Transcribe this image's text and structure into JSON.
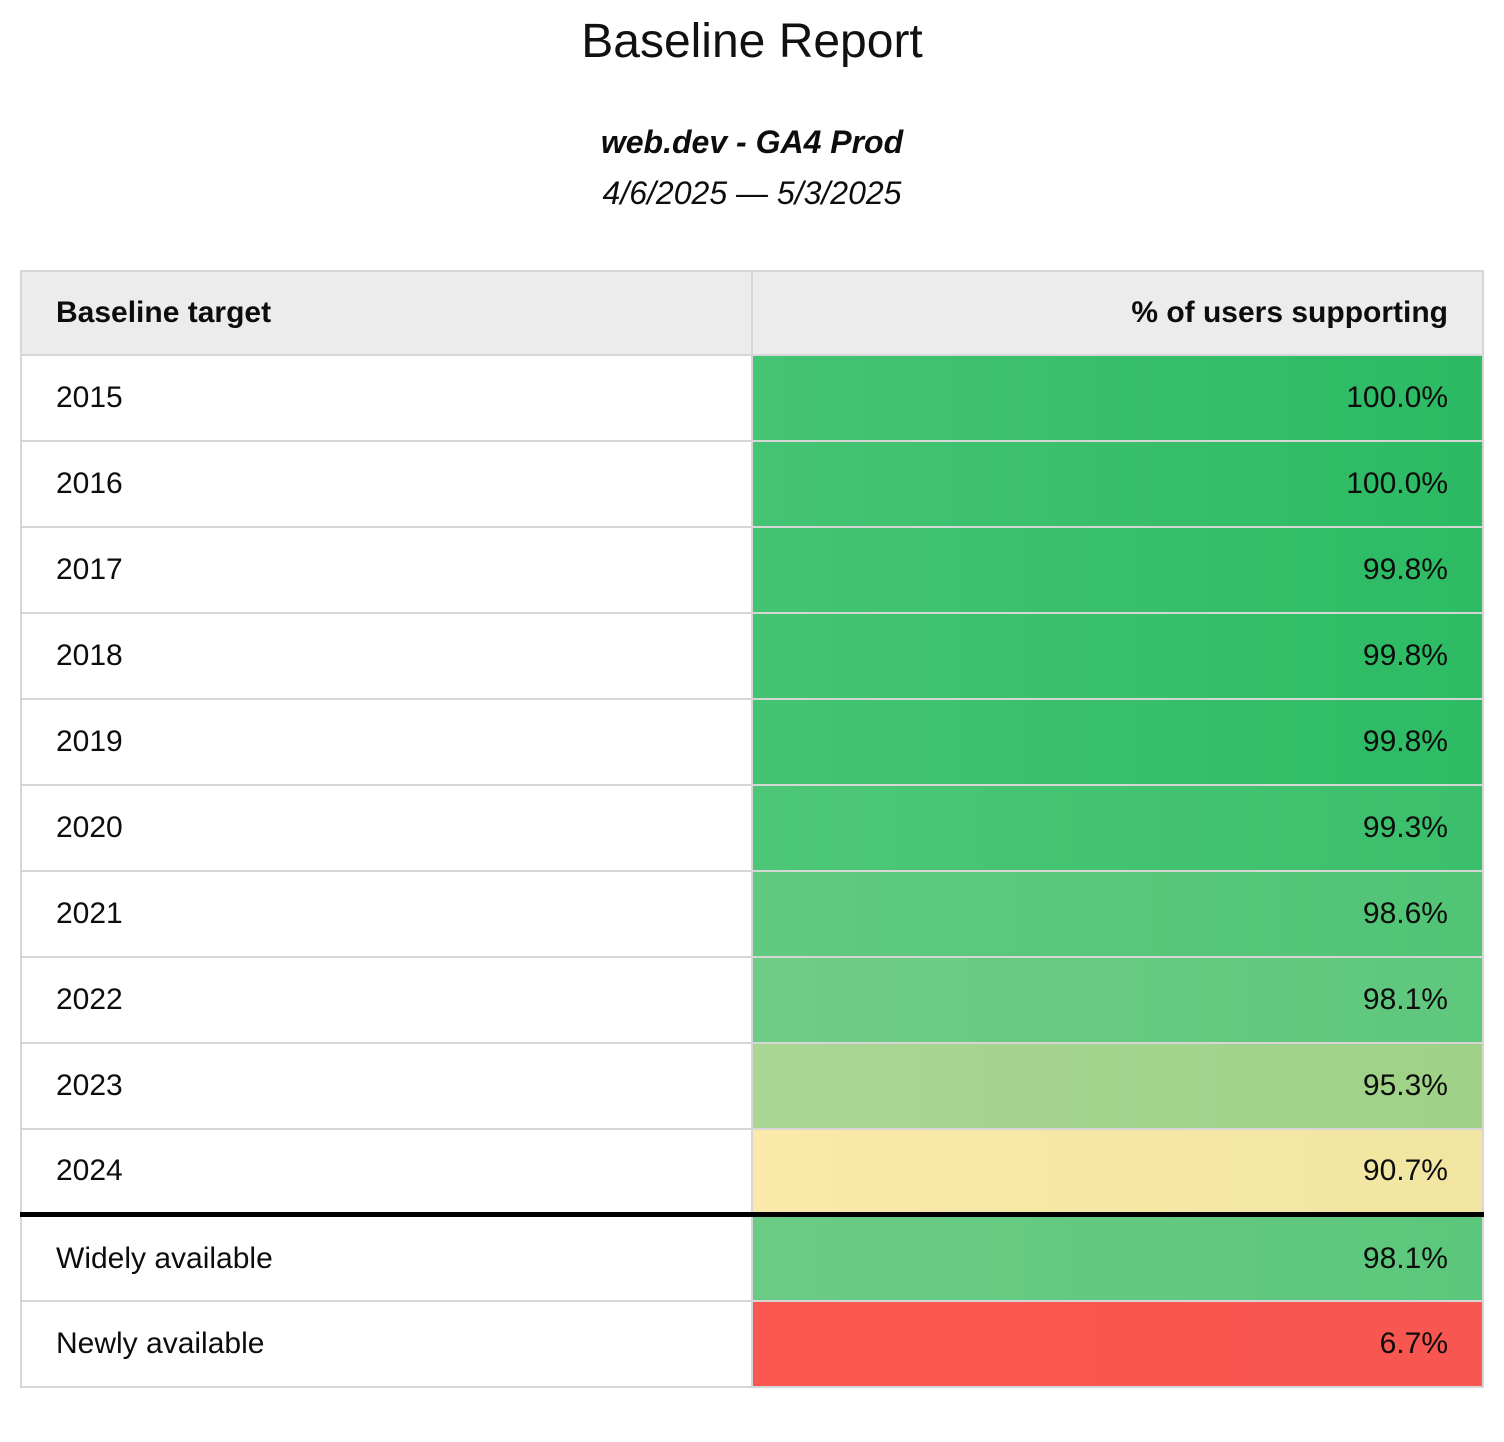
{
  "report": {
    "title": "Baseline Report",
    "subtitle": "web.dev - GA4 Prod",
    "date_range": "4/6/2025 — 5/3/2025"
  },
  "table": {
    "columns": [
      {
        "label": "Baseline target",
        "align": "left"
      },
      {
        "label": "% of users supporting",
        "align": "right"
      }
    ],
    "rows": [
      {
        "target": "2015",
        "value": "100.0%",
        "bg_start": "#45c474",
        "bg_end": "#2cba63",
        "divider_after": false
      },
      {
        "target": "2016",
        "value": "100.0%",
        "bg_start": "#45c474",
        "bg_end": "#2cba63",
        "divider_after": false
      },
      {
        "target": "2017",
        "value": "99.8%",
        "bg_start": "#43c473",
        "bg_end": "#2dbb64",
        "divider_after": false
      },
      {
        "target": "2018",
        "value": "99.8%",
        "bg_start": "#43c473",
        "bg_end": "#2dbb64",
        "divider_after": false
      },
      {
        "target": "2019",
        "value": "99.8%",
        "bg_start": "#43c473",
        "bg_end": "#2dbb64",
        "divider_after": false
      },
      {
        "target": "2020",
        "value": "99.3%",
        "bg_start": "#4cc778",
        "bg_end": "#3bbf6b",
        "divider_after": false
      },
      {
        "target": "2021",
        "value": "98.6%",
        "bg_start": "#60ca80",
        "bg_end": "#51c476",
        "divider_after": false
      },
      {
        "target": "2022",
        "value": "98.1%",
        "bg_start": "#6ecc86",
        "bg_end": "#5ec87d",
        "divider_after": false
      },
      {
        "target": "2023",
        "value": "95.3%",
        "bg_start": "#aad693",
        "bg_end": "#9fd187",
        "divider_after": false
      },
      {
        "target": "2024",
        "value": "90.7%",
        "bg_start": "#fbe9a9",
        "bg_end": "#f1e5a2",
        "divider_after": true
      },
      {
        "target": "Widely available",
        "value": "98.1%",
        "bg_start": "#6bcb84",
        "bg_end": "#5cc77c",
        "divider_after": false
      },
      {
        "target": "Newly available",
        "value": "6.7%",
        "bg_start": "#fa5750",
        "bg_end": "#f85650",
        "divider_after": false
      }
    ]
  },
  "colors": {
    "header_bg": "#ececec",
    "grid_border": "#d6d6d6",
    "strong_divider": "#000000",
    "page_bg": "#ffffff",
    "text": "#0d0d0d"
  }
}
